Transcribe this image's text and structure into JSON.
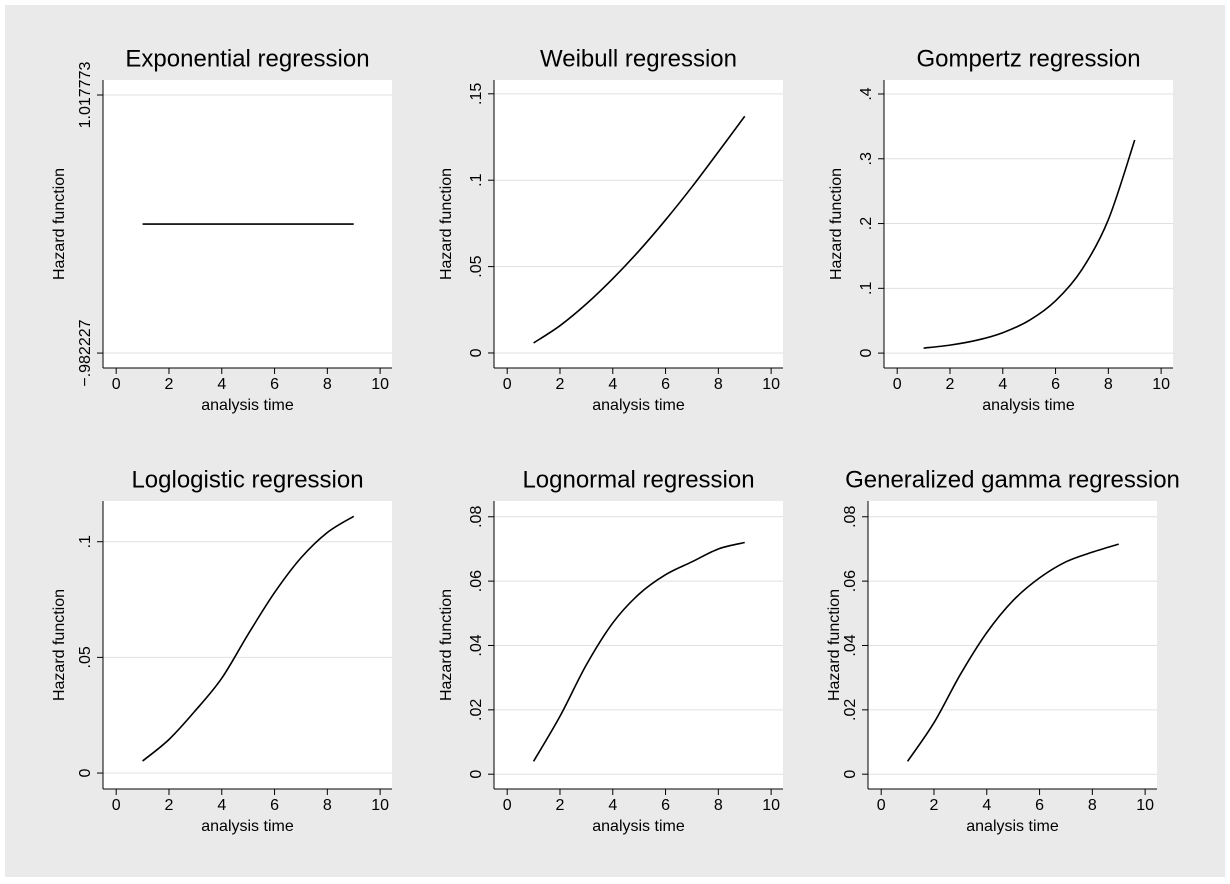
{
  "chart_data": [
    {
      "type": "line",
      "title": "Exponential regression",
      "xlabel": "analysis time",
      "ylabel": "Hazard function",
      "x": [
        1,
        2,
        3,
        4,
        5,
        6,
        7,
        8,
        9
      ],
      "values": [
        0.017773,
        0.017773,
        0.017773,
        0.017773,
        0.017773,
        0.017773,
        0.017773,
        0.017773,
        0.017773
      ],
      "color": "#000000",
      "xlim": [
        -0.5,
        10.45
      ],
      "ylim": [
        -1.098,
        1.134
      ],
      "xticks": [
        0,
        2,
        4,
        6,
        8,
        10
      ],
      "yticks": [
        {
          "value": -0.982227,
          "label": "−.982227"
        },
        1.017773
      ],
      "grid": true
    },
    {
      "type": "line",
      "title": "Weibull regression",
      "xlabel": "analysis time",
      "ylabel": "Hazard function",
      "x": [
        1,
        2,
        3,
        4,
        5,
        6,
        7,
        8,
        9
      ],
      "values": [
        0.0058,
        0.0158,
        0.0284,
        0.043,
        0.0592,
        0.077,
        0.0961,
        0.1164,
        0.137
      ],
      "color": "#000000",
      "xlim": [
        -0.5,
        10.45
      ],
      "ylim": [
        -0.0087,
        0.158
      ],
      "xticks": [
        0,
        2,
        4,
        6,
        8,
        10
      ],
      "yticks": [
        0,
        {
          "value": 0.05,
          "label": ".05"
        },
        {
          "value": 0.1,
          "label": ".1"
        },
        {
          "value": 0.15,
          "label": ".15"
        }
      ],
      "grid": true
    },
    {
      "type": "line",
      "title": "Gompertz regression",
      "xlabel": "analysis time",
      "ylabel": "Hazard function",
      "x": [
        1,
        2,
        3,
        4,
        5,
        6,
        7,
        8,
        9
      ],
      "values": [
        0.0077,
        0.0123,
        0.0197,
        0.0315,
        0.0504,
        0.0807,
        0.129,
        0.206,
        0.329
      ],
      "color": "#000000",
      "xlim": [
        -0.5,
        10.45
      ],
      "ylim": [
        -0.023,
        0.4216
      ],
      "xticks": [
        0,
        2,
        4,
        6,
        8,
        10
      ],
      "yticks": [
        0,
        {
          "value": 0.1,
          "label": ".1"
        },
        {
          "value": 0.2,
          "label": ".2"
        },
        {
          "value": 0.3,
          "label": ".3"
        },
        {
          "value": 0.4,
          "label": ".4"
        }
      ],
      "grid": true
    },
    {
      "type": "line",
      "title": "Loglogistic regression",
      "xlabel": "analysis time",
      "ylabel": "Hazard function",
      "x": [
        1,
        2,
        3,
        4,
        5,
        6,
        7,
        8,
        9
      ],
      "values": [
        0.0052,
        0.0145,
        0.027,
        0.041,
        0.06,
        0.078,
        0.093,
        0.104,
        0.111
      ],
      "color": "#000000",
      "xlim": [
        -0.5,
        10.45
      ],
      "ylim": [
        -0.0069,
        0.1176
      ],
      "xticks": [
        0,
        2,
        4,
        6,
        8,
        10
      ],
      "yticks": [
        0,
        {
          "value": 0.05,
          "label": ".05"
        },
        {
          "value": 0.1,
          "label": ".1"
        }
      ],
      "grid": true
    },
    {
      "type": "line",
      "title": "Lognormal regression",
      "xlabel": "analysis time",
      "ylabel": "Hazard function",
      "x": [
        1,
        2,
        3,
        4,
        5,
        6,
        7,
        8,
        9
      ],
      "values": [
        0.004,
        0.018,
        0.034,
        0.047,
        0.056,
        0.062,
        0.066,
        0.07,
        0.072
      ],
      "color": "#000000",
      "xlim": [
        -0.5,
        10.45
      ],
      "ylim": [
        -0.0046,
        0.0849
      ],
      "xticks": [
        0,
        2,
        4,
        6,
        8,
        10
      ],
      "yticks": [
        0,
        {
          "value": 0.02,
          "label": ".02"
        },
        {
          "value": 0.04,
          "label": ".04"
        },
        {
          "value": 0.06,
          "label": ".06"
        },
        {
          "value": 0.08,
          "label": ".08"
        }
      ],
      "grid": true
    },
    {
      "type": "line",
      "title": "Generalized gamma regression",
      "xlabel": "analysis time",
      "ylabel": "Hazard function",
      "x": [
        1,
        2,
        3,
        4,
        5,
        6,
        7,
        8,
        9
      ],
      "values": [
        0.004,
        0.016,
        0.031,
        0.044,
        0.054,
        0.061,
        0.066,
        0.069,
        0.0715
      ],
      "color": "#000000",
      "xlim": [
        -0.5,
        10.45
      ],
      "ylim": [
        -0.0046,
        0.0849
      ],
      "xticks": [
        0,
        2,
        4,
        6,
        8,
        10
      ],
      "yticks": [
        0,
        {
          "value": 0.02,
          "label": ".02"
        },
        {
          "value": 0.04,
          "label": ".04"
        },
        {
          "value": 0.06,
          "label": ".06"
        },
        {
          "value": 0.08,
          "label": ".08"
        }
      ],
      "grid": true
    }
  ]
}
